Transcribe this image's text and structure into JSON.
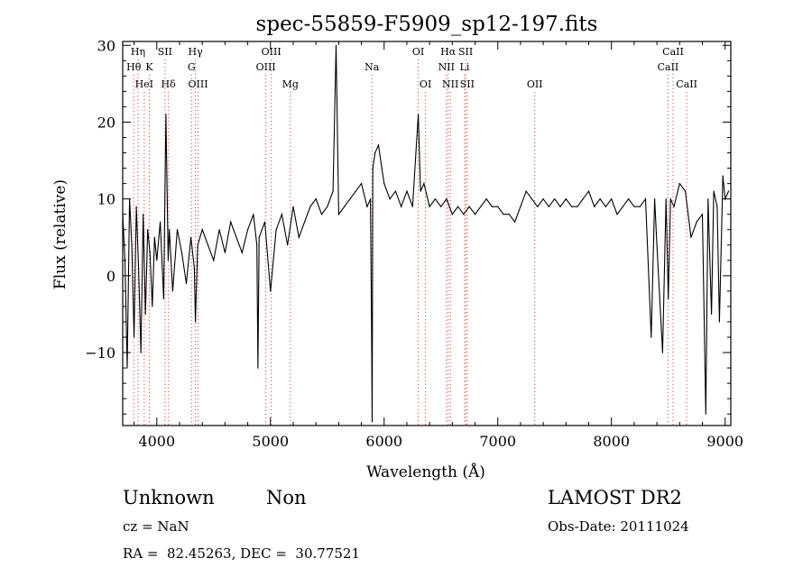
{
  "chart_data": {
    "type": "line",
    "title": "spec-55859-F5909_sp12-197.fits",
    "xlabel": "Wavelength (Å)",
    "ylabel": "Flux (relative)",
    "xlim": [
      3700,
      9050
    ],
    "ylim": [
      -19.5,
      30.5
    ],
    "xticks": [
      4000,
      5000,
      6000,
      7000,
      8000,
      9000
    ],
    "yticks": [
      -10,
      0,
      10,
      20,
      30
    ],
    "x_minor_step": 200,
    "y_minor_step": 2,
    "grid": false,
    "line_color": "#000000",
    "marker_color": "#d04030",
    "line_markers": [
      {
        "label": "Hη",
        "x": 3835,
        "row": 0
      },
      {
        "label": "Hθ",
        "x": 3797,
        "row": 1
      },
      {
        "label": "HeI",
        "x": 3889,
        "row": 2
      },
      {
        "label": "K",
        "x": 3934,
        "row": 1
      },
      {
        "label": "SII",
        "x": 4072,
        "row": 0
      },
      {
        "label": "Hδ",
        "x": 4102,
        "row": 2
      },
      {
        "label": "Hγ",
        "x": 4340,
        "row": 0
      },
      {
        "label": "G",
        "x": 4305,
        "row": 1
      },
      {
        "label": "OIII",
        "x": 4363,
        "row": 2
      },
      {
        "label": "OIII",
        "x": 5007,
        "row": 0
      },
      {
        "label": "OIII",
        "x": 4959,
        "row": 1
      },
      {
        "label": "Mg",
        "x": 5175,
        "row": 2
      },
      {
        "label": "Na",
        "x": 5893,
        "row": 1
      },
      {
        "label": "OI",
        "x": 6300,
        "row": 0
      },
      {
        "label": "OI",
        "x": 6364,
        "row": 2
      },
      {
        "label": "Hα",
        "x": 6563,
        "row": 0
      },
      {
        "label": "SII",
        "x": 6717,
        "row": 0
      },
      {
        "label": "NII",
        "x": 6548,
        "row": 1
      },
      {
        "label": "Li",
        "x": 6708,
        "row": 1
      },
      {
        "label": "NII",
        "x": 6583,
        "row": 2
      },
      {
        "label": "SII",
        "x": 6731,
        "row": 2
      },
      {
        "label": "OII",
        "x": 7325,
        "row": 2
      },
      {
        "label": "CaII",
        "x": 8542,
        "row": 0
      },
      {
        "label": "CaII",
        "x": 8498,
        "row": 1
      },
      {
        "label": "CaII",
        "x": 8662,
        "row": 2
      }
    ],
    "series": [
      {
        "x": [
          3700,
          3720,
          3740,
          3760,
          3780,
          3800,
          3820,
          3840,
          3860,
          3880,
          3900,
          3920,
          3940,
          3960,
          3980,
          4000,
          4030,
          4060,
          4080,
          4100,
          4110,
          4140,
          4180,
          4220,
          4260,
          4300,
          4330,
          4340,
          4360,
          4400,
          4450,
          4500,
          4550,
          4600,
          4650,
          4700,
          4750,
          4800,
          4850,
          4880,
          4890,
          4900,
          4950,
          5000,
          5050,
          5100,
          5150,
          5200,
          5250,
          5300,
          5350,
          5400,
          5450,
          5500,
          5550,
          5577,
          5600,
          5650,
          5700,
          5750,
          5800,
          5850,
          5880,
          5890,
          5895,
          5900,
          5920,
          5950,
          5980,
          6000,
          6050,
          6100,
          6150,
          6200,
          6250,
          6300,
          6320,
          6350,
          6400,
          6450,
          6500,
          6550,
          6600,
          6650,
          6700,
          6750,
          6800,
          6850,
          6900,
          6950,
          7000,
          7050,
          7100,
          7150,
          7200,
          7250,
          7300,
          7350,
          7400,
          7450,
          7500,
          7550,
          7600,
          7650,
          7700,
          7750,
          7800,
          7850,
          7900,
          7950,
          8000,
          8050,
          8100,
          8150,
          8200,
          8250,
          8300,
          8350,
          8380,
          8400,
          8450,
          8480,
          8500,
          8520,
          8550,
          8600,
          8650,
          8700,
          8750,
          8800,
          8830,
          8850,
          8880,
          8900,
          8930,
          8950,
          8980,
          9000,
          9030
        ],
        "y": [
          8,
          2,
          -12,
          10,
          4,
          -8,
          9,
          1,
          -10,
          8,
          -5,
          6,
          3,
          -4,
          5,
          2,
          7,
          -3,
          21,
          2,
          6,
          -2,
          6,
          3,
          -1,
          5,
          1,
          -6,
          4,
          6,
          4,
          2,
          6,
          3,
          7,
          5,
          3,
          6,
          8,
          4,
          -12,
          5,
          7,
          -2,
          6,
          8,
          4,
          9,
          5,
          7,
          9,
          10,
          8,
          9,
          11,
          30,
          8,
          9,
          10,
          11,
          12,
          9,
          10,
          -8,
          -19,
          14,
          16,
          17,
          14,
          12,
          10,
          11,
          9,
          11,
          9,
          21,
          11,
          12,
          9,
          10,
          9,
          10,
          8,
          9,
          8,
          9,
          8,
          9,
          10,
          9,
          9,
          8,
          8,
          7,
          9,
          11,
          10,
          9,
          10,
          9,
          10,
          9,
          10,
          9,
          9,
          10,
          11,
          9,
          10,
          9,
          10,
          8,
          9,
          10,
          9,
          9,
          10,
          -8,
          10,
          4,
          -10,
          10,
          -3,
          10,
          9,
          12,
          11,
          5,
          7,
          8,
          -18,
          10,
          -5,
          11,
          9,
          -6,
          13,
          10,
          11
        ]
      }
    ]
  },
  "info": {
    "class": "Unknown",
    "subclass": "Non",
    "survey": "LAMOST DR2",
    "cz": "cz = NaN",
    "obs_date": "Obs-Date: 20111024",
    "coords": "RA =  82.45263, DEC =  30.77521"
  }
}
